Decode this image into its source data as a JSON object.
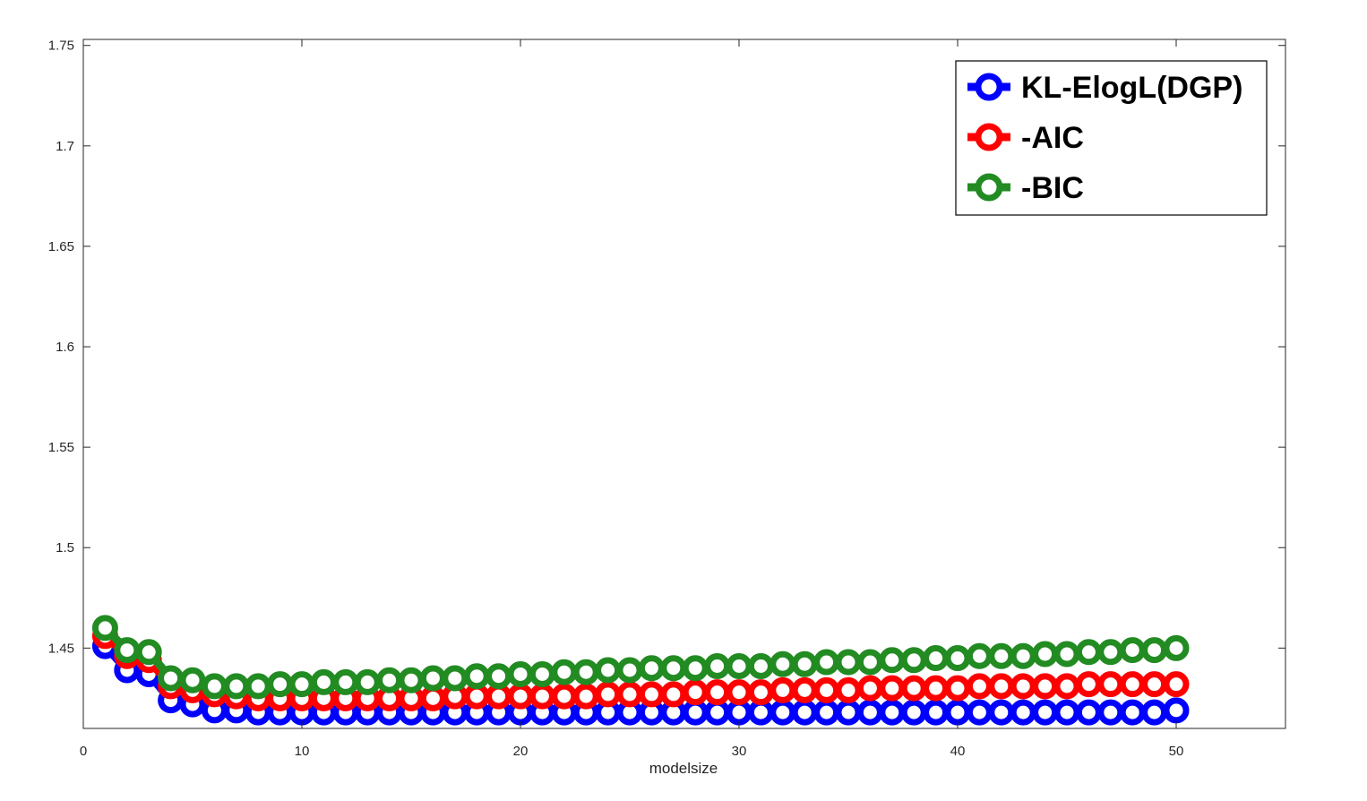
{
  "chart_data": {
    "type": "line",
    "xlabel": "modelsize",
    "ylabel": "",
    "title": "",
    "xlim": [
      0,
      55
    ],
    "ylim": [
      1.41,
      1.753
    ],
    "xticks": [
      0,
      10,
      20,
      30,
      40,
      50
    ],
    "yticks": [
      1.45,
      1.5,
      1.55,
      1.6,
      1.65,
      1.7,
      1.75
    ],
    "xtick_labels": [
      "0",
      "10",
      "20",
      "30",
      "40",
      "50"
    ],
    "ytick_labels": [
      "1.45",
      "1.5",
      "1.55",
      "1.6",
      "1.65",
      "1.7",
      "1.75"
    ],
    "grid": false,
    "legend_position": "top-right",
    "x": [
      1,
      2,
      3,
      4,
      5,
      6,
      7,
      8,
      9,
      10,
      11,
      12,
      13,
      14,
      15,
      16,
      17,
      18,
      19,
      20,
      21,
      22,
      23,
      24,
      25,
      26,
      27,
      28,
      29,
      30,
      31,
      32,
      33,
      34,
      35,
      36,
      37,
      38,
      39,
      40,
      41,
      42,
      43,
      44,
      45,
      46,
      47,
      48,
      49,
      50
    ],
    "series": [
      {
        "name": "KL-ElogL(DGP)",
        "color": "#0000ff",
        "values": [
          1.451,
          1.439,
          1.437,
          1.424,
          1.422,
          1.419,
          1.419,
          1.418,
          1.418,
          1.418,
          1.418,
          1.418,
          1.418,
          1.418,
          1.418,
          1.418,
          1.418,
          1.418,
          1.418,
          1.418,
          1.418,
          1.418,
          1.418,
          1.418,
          1.418,
          1.418,
          1.418,
          1.418,
          1.418,
          1.418,
          1.418,
          1.418,
          1.418,
          1.418,
          1.418,
          1.418,
          1.418,
          1.418,
          1.418,
          1.418,
          1.418,
          1.418,
          1.418,
          1.418,
          1.418,
          1.418,
          1.418,
          1.418,
          1.418,
          1.419
        ]
      },
      {
        "name": "-AIC",
        "color": "#ff0000",
        "values": [
          1.456,
          1.446,
          1.444,
          1.431,
          1.429,
          1.427,
          1.426,
          1.425,
          1.425,
          1.425,
          1.425,
          1.425,
          1.425,
          1.425,
          1.425,
          1.425,
          1.426,
          1.426,
          1.426,
          1.426,
          1.426,
          1.426,
          1.426,
          1.427,
          1.427,
          1.427,
          1.427,
          1.428,
          1.428,
          1.428,
          1.428,
          1.429,
          1.429,
          1.429,
          1.429,
          1.43,
          1.43,
          1.43,
          1.43,
          1.43,
          1.431,
          1.431,
          1.431,
          1.431,
          1.431,
          1.432,
          1.432,
          1.432,
          1.432,
          1.432
        ]
      },
      {
        "name": "-BIC",
        "color": "#228b22",
        "values": [
          1.46,
          1.449,
          1.448,
          1.435,
          1.434,
          1.431,
          1.431,
          1.431,
          1.432,
          1.432,
          1.433,
          1.433,
          1.433,
          1.434,
          1.434,
          1.435,
          1.435,
          1.436,
          1.436,
          1.437,
          1.437,
          1.438,
          1.438,
          1.439,
          1.439,
          1.44,
          1.44,
          1.44,
          1.441,
          1.441,
          1.441,
          1.442,
          1.442,
          1.443,
          1.443,
          1.443,
          1.444,
          1.444,
          1.445,
          1.445,
          1.446,
          1.446,
          1.446,
          1.447,
          1.447,
          1.448,
          1.448,
          1.449,
          1.449,
          1.45
        ]
      }
    ]
  }
}
